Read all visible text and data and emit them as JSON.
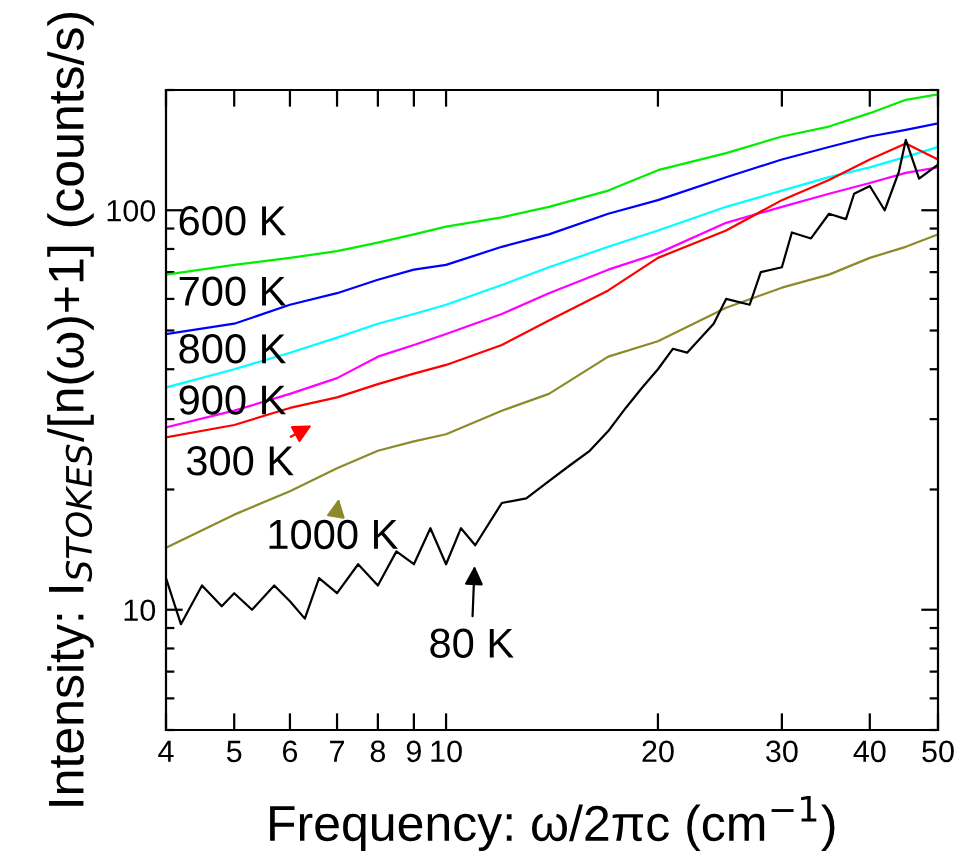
{
  "chart_data": {
    "type": "line",
    "xlabel": "Frequency: ω/2πc (cm$^{−1}$)",
    "ylabel": "Intensity: I$_{STOKES}$/[n(ω)+1] (counts/s)",
    "log": "xy",
    "grid": false,
    "legend": "left",
    "xlim": [
      4,
      50
    ],
    "ylim": [
      5,
      200
    ],
    "xticks": [
      4,
      5,
      6,
      7,
      8,
      9,
      10,
      20,
      30,
      40,
      50
    ],
    "yticks": [
      {
        "value": 5,
        "label": null
      },
      {
        "value": 6,
        "label": null
      },
      {
        "value": 7,
        "label": null
      },
      {
        "value": 8,
        "label": null
      },
      {
        "value": 9,
        "label": null
      },
      10,
      {
        "value": 20,
        "label": null
      },
      {
        "value": 30,
        "label": null
      },
      {
        "value": 40,
        "label": null
      },
      {
        "value": 50,
        "label": null
      },
      {
        "value": 60,
        "label": null
      },
      {
        "value": 70,
        "label": null
      },
      {
        "value": 80,
        "label": null
      },
      {
        "value": 90,
        "label": null
      },
      100,
      {
        "value": 200,
        "label": null
      }
    ],
    "series": [
      {
        "name": "600 K",
        "color": "#00ee00",
        "x": [
          4,
          5,
          6,
          7,
          8,
          9,
          10,
          12,
          14,
          17,
          20,
          25,
          30,
          35,
          40,
          45,
          50
        ],
        "values": [
          69,
          73,
          76,
          79,
          83,
          87,
          91,
          96,
          102,
          112,
          126,
          139,
          153,
          162,
          175,
          189,
          195
        ]
      },
      {
        "name": "700 K",
        "color": "#0000ff",
        "x": [
          4,
          5,
          6,
          7,
          8,
          9,
          10,
          12,
          14,
          17,
          20,
          25,
          30,
          35,
          40,
          45,
          50
        ],
        "values": [
          49,
          52,
          58,
          62,
          67,
          71,
          73,
          81,
          87,
          98,
          106,
          121,
          134,
          144,
          153,
          159,
          165
        ]
      },
      {
        "name": "800 K",
        "color": "#00ffff",
        "x": [
          4,
          5,
          6,
          7,
          8,
          9,
          10,
          12,
          14,
          17,
          20,
          25,
          30,
          35,
          40,
          45,
          50
        ],
        "values": [
          36,
          40,
          44,
          48,
          52,
          55,
          58,
          65,
          72,
          81,
          89,
          102,
          112,
          121,
          128,
          136,
          144
        ]
      },
      {
        "name": "900 K",
        "color": "#ff00ff",
        "x": [
          4,
          5,
          6,
          7,
          8,
          9,
          10,
          12,
          14,
          17,
          20,
          25,
          30,
          35,
          40,
          45,
          50
        ],
        "values": [
          28.6,
          31.5,
          34.7,
          38,
          43,
          46,
          49,
          55,
          62,
          71,
          78,
          93,
          102,
          110,
          117,
          124,
          128
        ]
      },
      {
        "name": "300 K",
        "color": "#ff0000",
        "x": [
          4,
          5,
          6,
          7,
          8,
          9,
          10,
          12,
          14,
          17,
          20,
          25,
          30,
          35,
          40,
          45,
          50
        ],
        "values": [
          27,
          29,
          32,
          34,
          36.7,
          39,
          41,
          46,
          53,
          63,
          76,
          89,
          106,
          119,
          134,
          147,
          134
        ]
      },
      {
        "name": "1000 K",
        "color": "#8b8b2b",
        "x": [
          4,
          5,
          6,
          7,
          8,
          9,
          10,
          12,
          14,
          17,
          20,
          25,
          30,
          35,
          40,
          45,
          50
        ],
        "values": [
          14.3,
          17.3,
          19.8,
          22.6,
          25,
          26.4,
          27.5,
          31.5,
          34.7,
          43,
          47,
          57,
          64,
          69,
          76,
          81,
          87
        ]
      },
      {
        "name": "80 K",
        "color": "#000000",
        "x": [
          4,
          4.2,
          4.5,
          4.8,
          5,
          5.3,
          5.7,
          6,
          6.3,
          6.6,
          7,
          7.5,
          8,
          8.5,
          9,
          9.5,
          10,
          10.5,
          11,
          12,
          13,
          14,
          15,
          16,
          17,
          18,
          19,
          20,
          21,
          22,
          24,
          25,
          27,
          28,
          30,
          31,
          33,
          35,
          37,
          38,
          40,
          42,
          44,
          45,
          47,
          50
        ],
        "values": [
          12,
          9.2,
          11.5,
          10.2,
          11,
          10,
          11.5,
          10.5,
          9.5,
          12,
          11,
          13,
          11.5,
          14,
          13,
          16,
          13,
          16,
          14.5,
          18.5,
          19,
          21,
          23,
          25,
          28,
          32,
          36,
          40,
          45,
          44,
          52,
          60,
          58,
          70,
          72,
          88,
          85,
          98,
          95,
          110,
          115,
          100,
          125,
          150,
          120,
          130
        ]
      }
    ]
  }
}
